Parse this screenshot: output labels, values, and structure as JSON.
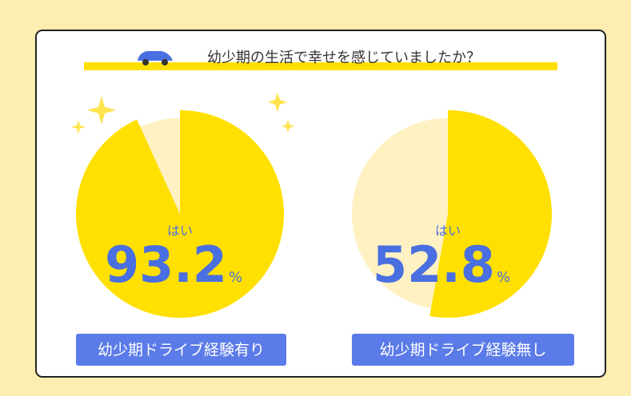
{
  "title": "幼少期の生活で幸せを感じていましたか？",
  "chart_data": [
    {
      "type": "pie",
      "categories": [
        "はい",
        null
      ],
      "values": [
        93.2,
        6.8
      ],
      "colors": [
        "#ffe000",
        "#fff1c2"
      ],
      "unit": "%",
      "label": "幼少期ドライブ経験有り"
    },
    {
      "type": "pie",
      "categories": [
        "はい",
        null
      ],
      "values": [
        52.8,
        47.2
      ],
      "colors": [
        "#ffe000",
        "#fff1c2"
      ],
      "unit": "%",
      "label": "幼少期ドライブ経験無し"
    }
  ]
}
